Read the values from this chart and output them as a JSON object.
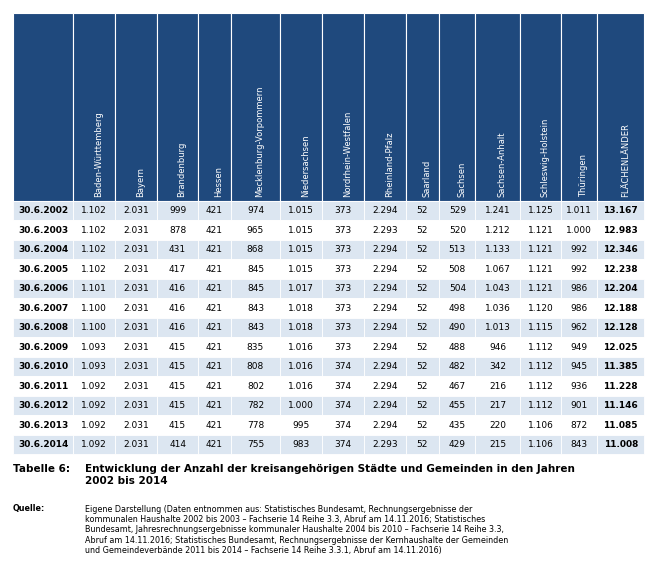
{
  "col_headers": [
    "Baden-Württemberg",
    "Bayern",
    "Brandenburg",
    "Hessen",
    "Mecklenburg-Vorpommern",
    "Niedersachsen",
    "Nordrhein-Westfalen",
    "Rheinland-Pfalz",
    "Saarland",
    "Sachsen",
    "Sachsen-Anhalt",
    "Schleswig-Holstein",
    "Thüringen",
    "FLÄCHENLÄNDER"
  ],
  "row_headers": [
    "30.6.2002",
    "30.6.2003",
    "30.6.2004",
    "30.6.2005",
    "30.6.2006",
    "30.6.2007",
    "30.6.2008",
    "30.6.2009",
    "30.6.2010",
    "30.6.2011",
    "30.6.2012",
    "30.6.2013",
    "30.6.2014"
  ],
  "data": [
    [
      "1.102",
      "2.031",
      "999",
      "421",
      "974",
      "1.015",
      "373",
      "2.294",
      "52",
      "529",
      "1.241",
      "1.125",
      "1.011",
      "13.167"
    ],
    [
      "1.102",
      "2.031",
      "878",
      "421",
      "965",
      "1.015",
      "373",
      "2.293",
      "52",
      "520",
      "1.212",
      "1.121",
      "1.000",
      "12.983"
    ],
    [
      "1.102",
      "2.031",
      "431",
      "421",
      "868",
      "1.015",
      "373",
      "2.294",
      "52",
      "513",
      "1.133",
      "1.121",
      "992",
      "12.346"
    ],
    [
      "1.102",
      "2.031",
      "417",
      "421",
      "845",
      "1.015",
      "373",
      "2.294",
      "52",
      "508",
      "1.067",
      "1.121",
      "992",
      "12.238"
    ],
    [
      "1.101",
      "2.031",
      "416",
      "421",
      "845",
      "1.017",
      "373",
      "2.294",
      "52",
      "504",
      "1.043",
      "1.121",
      "986",
      "12.204"
    ],
    [
      "1.100",
      "2.031",
      "416",
      "421",
      "843",
      "1.018",
      "373",
      "2.294",
      "52",
      "498",
      "1.036",
      "1.120",
      "986",
      "12.188"
    ],
    [
      "1.100",
      "2.031",
      "416",
      "421",
      "843",
      "1.018",
      "373",
      "2.294",
      "52",
      "490",
      "1.013",
      "1.115",
      "962",
      "12.128"
    ],
    [
      "1.093",
      "2.031",
      "415",
      "421",
      "835",
      "1.016",
      "373",
      "2.294",
      "52",
      "488",
      "946",
      "1.112",
      "949",
      "12.025"
    ],
    [
      "1.093",
      "2.031",
      "415",
      "421",
      "808",
      "1.016",
      "374",
      "2.294",
      "52",
      "482",
      "342",
      "1.112",
      "945",
      "11.385"
    ],
    [
      "1.092",
      "2.031",
      "415",
      "421",
      "802",
      "1.016",
      "374",
      "2.294",
      "52",
      "467",
      "216",
      "1.112",
      "936",
      "11.228"
    ],
    [
      "1.092",
      "2.031",
      "415",
      "421",
      "782",
      "1.000",
      "374",
      "2.294",
      "52",
      "455",
      "217",
      "1.112",
      "901",
      "11.146"
    ],
    [
      "1.092",
      "2.031",
      "415",
      "421",
      "778",
      "995",
      "374",
      "2.294",
      "52",
      "435",
      "220",
      "1.106",
      "872",
      "11.085"
    ],
    [
      "1.092",
      "2.031",
      "414",
      "421",
      "755",
      "983",
      "374",
      "2.293",
      "52",
      "429",
      "215",
      "1.106",
      "843",
      "11.008"
    ]
  ],
  "header_bg": "#1F497D",
  "header_text_color": "#FFFFFF",
  "row_bg_even": "#DCE6F1",
  "row_bg_odd": "#FFFFFF",
  "caption_label": "Tabelle 6:",
  "caption_text": "Entwicklung der Anzahl der kreisangehörigen Städte und Gemeinden in den Jahren\n2002 bis 2014",
  "source_label": "Quelle:",
  "source_text": "Eigene Darstellung (Daten entnommen aus: Statistisches Bundesamt, Rechnungsergebnisse der\nkommunalen Haushalte 2002 bis 2003 – Fachserie 14 Reihe 3.3, Abruf am 14.11.2016; Statistisches\nBundesamt, Jahresrechnungsergebnisse kommunaler Haushalte 2004 bis 2010 – Fachserie 14 Reihe 3.3,\nAbruf am 14.11.2016; Statistisches Bundesamt, Rechnungsergebnisse der Kernhaushalte der Gemeinden\nund Gemeindeverbände 2011 bis 2014 – Fachserie 14 Reihe 3.3.1, Abruf am 14.11.2016)",
  "col_widths_rel": [
    7.5,
    5.2,
    5.2,
    5.2,
    4.0,
    6.2,
    5.2,
    5.2,
    5.2,
    4.2,
    4.5,
    5.5,
    5.2,
    4.5,
    5.8
  ]
}
